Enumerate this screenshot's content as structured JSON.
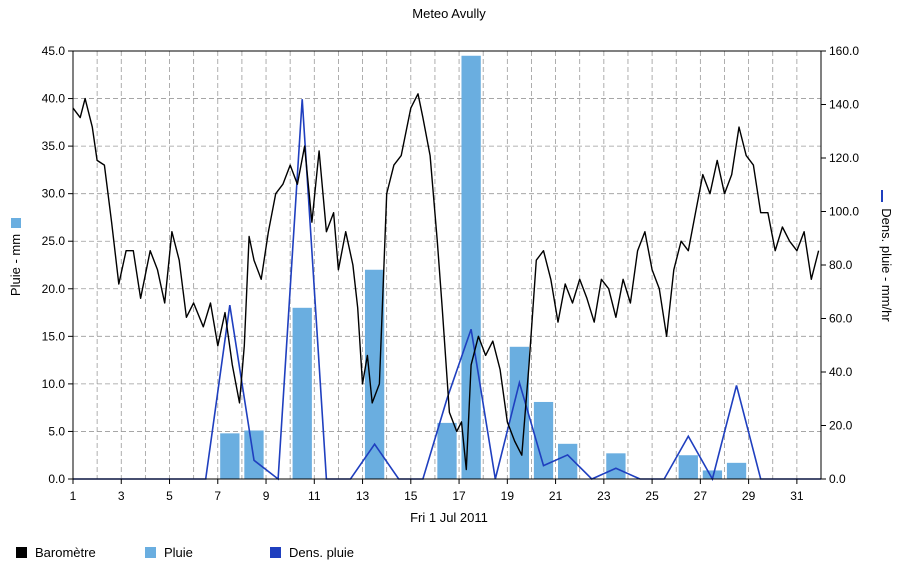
{
  "chart_data": {
    "type": "bar",
    "title": "Meteo  Avully",
    "xlabel": "Fri 1 Jul 2011",
    "ylabel_left": "Pluie - mm",
    "ylabel_right": "Dens. pluie - mm/hr",
    "x_range": [
      1,
      32
    ],
    "x_ticks": [
      "1",
      "3",
      "5",
      "7",
      "9",
      "11",
      "13",
      "15",
      "17",
      "19",
      "21",
      "23",
      "25",
      "27",
      "29",
      "31"
    ],
    "y_left_range": [
      0,
      45
    ],
    "y_left_ticks": [
      "0.0",
      "5.0",
      "10.0",
      "15.0",
      "20.0",
      "25.0",
      "30.0",
      "35.0",
      "40.0",
      "45.0"
    ],
    "y_right_range": [
      0,
      160
    ],
    "y_right_ticks": [
      "0.0",
      "20.0",
      "40.0",
      "60.0",
      "80.0",
      "100.0",
      "120.0",
      "140.0",
      "160.0"
    ],
    "grid": true,
    "legend_position": "bottom",
    "colors": {
      "barometre": "#000000",
      "pluie": "#6aaee0",
      "dens_pluie": "#1f3fbf",
      "grid": "#9a9a9a"
    },
    "series": [
      {
        "name": "Pluie",
        "axis": "left",
        "type": "bar",
        "x": [
          7.5,
          8.5,
          10.5,
          13.5,
          16.5,
          17.5,
          19.5,
          20.5,
          21.5,
          23.5,
          26.5,
          27.5,
          28.5
        ],
        "values": [
          4.8,
          5.1,
          18.0,
          22.0,
          5.9,
          44.5,
          13.9,
          8.1,
          3.7,
          2.7,
          2.5,
          0.9,
          1.7
        ]
      },
      {
        "name": "Dens. pluie",
        "axis": "right",
        "type": "line",
        "x": [
          1,
          6.5,
          7.5,
          8.5,
          9.5,
          10.5,
          11.5,
          12.5,
          13.5,
          14.5,
          15.5,
          16.5,
          17.5,
          18.5,
          19.5,
          20.5,
          21.5,
          22.5,
          23.5,
          24.5,
          25.5,
          26.5,
          27.5,
          28.5,
          29.5,
          32
        ],
        "values": [
          0,
          0,
          65,
          7,
          0,
          142,
          0,
          0,
          13,
          0,
          0,
          30,
          56,
          0,
          36,
          5,
          9,
          0,
          4,
          0,
          0,
          16,
          0,
          35,
          0,
          0
        ]
      },
      {
        "name": "Baromètre",
        "axis": "left",
        "type": "line",
        "x": [
          1.0,
          1.3,
          1.5,
          1.8,
          2.0,
          2.3,
          2.6,
          2.9,
          3.2,
          3.5,
          3.8,
          4.2,
          4.5,
          4.8,
          5.1,
          5.4,
          5.7,
          6.0,
          6.4,
          6.7,
          7.0,
          7.3,
          7.6,
          7.9,
          8.1,
          8.3,
          8.5,
          8.8,
          9.1,
          9.4,
          9.7,
          10.0,
          10.3,
          10.6,
          10.9,
          11.2,
          11.5,
          11.8,
          12.0,
          12.3,
          12.6,
          12.8,
          13.0,
          13.2,
          13.4,
          13.7,
          14.0,
          14.3,
          14.6,
          15.0,
          15.3,
          15.5,
          15.8,
          16.1,
          16.3,
          16.6,
          16.9,
          17.1,
          17.3,
          17.5,
          17.8,
          18.1,
          18.4,
          18.7,
          19.0,
          19.3,
          19.6,
          19.9,
          20.2,
          20.5,
          20.8,
          21.1,
          21.4,
          21.7,
          22.0,
          22.3,
          22.6,
          22.9,
          23.2,
          23.5,
          23.8,
          24.1,
          24.4,
          24.7,
          25.0,
          25.3,
          25.6,
          25.9,
          26.2,
          26.5,
          26.8,
          27.1,
          27.4,
          27.7,
          28.0,
          28.3,
          28.6,
          28.9,
          29.2,
          29.5,
          29.8,
          30.1,
          30.4,
          30.7,
          31.0,
          31.3,
          31.6,
          31.9
        ],
        "values": [
          39.0,
          38.0,
          40.0,
          37.0,
          33.5,
          33.0,
          27.0,
          20.5,
          24.0,
          24.0,
          19.0,
          24.0,
          22.0,
          18.5,
          26.0,
          23.0,
          17.0,
          18.5,
          16.0,
          18.5,
          14.0,
          17.5,
          12.0,
          8.0,
          14.0,
          25.5,
          23.0,
          21.0,
          26.0,
          30.0,
          31.0,
          33.0,
          31.0,
          35.0,
          27.0,
          34.5,
          26.0,
          28.0,
          22.0,
          26.0,
          22.5,
          18.0,
          10.0,
          13.0,
          8.0,
          10.0,
          30.0,
          33.0,
          34.0,
          39.0,
          40.5,
          38.0,
          34.0,
          25.0,
          18.0,
          7.0,
          5.0,
          6.0,
          1.0,
          12.0,
          15.0,
          13.0,
          14.5,
          11.5,
          6.0,
          4.0,
          2.5,
          12.0,
          23.0,
          24.0,
          21.0,
          16.5,
          20.5,
          18.5,
          21.0,
          19.0,
          16.5,
          21.0,
          20.0,
          17.0,
          21.0,
          18.5,
          24.0,
          26.0,
          22.0,
          20.0,
          15.0,
          22.0,
          25.0,
          24.0,
          28.0,
          32.0,
          30.0,
          33.5,
          30.0,
          32.0,
          37.0,
          34.0,
          33.0,
          28.0,
          28.0,
          24.0,
          26.5,
          25.0,
          24.0,
          26.0,
          21.0,
          24.0
        ]
      }
    ]
  },
  "legend": {
    "barometre": "Baromètre",
    "pluie": "Pluie",
    "dens_pluie": "Dens. pluie"
  }
}
